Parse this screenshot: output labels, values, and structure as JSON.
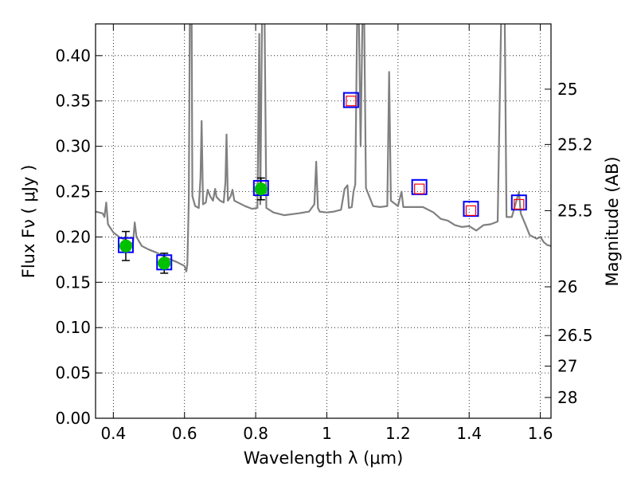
{
  "chart_data": {
    "type": "line",
    "title": "",
    "xlabel": "Wavelength  λ (μm)",
    "ylabel": "Flux  Fν  ( μJy )",
    "y2label": "Magnitude (AB)",
    "xlim": [
      0.35,
      1.63
    ],
    "ylim": [
      0.0,
      0.435
    ],
    "grid": true,
    "x_ticks": [
      {
        "value": 0.4,
        "label": "0.4"
      },
      {
        "value": 0.6,
        "label": "0.6"
      },
      {
        "value": 0.8,
        "label": "0.8"
      },
      {
        "value": 1.0,
        "label": "1"
      },
      {
        "value": 1.2,
        "label": "1.2"
      },
      {
        "value": 1.4,
        "label": "1.4"
      },
      {
        "value": 1.6,
        "label": "1.6"
      }
    ],
    "y_ticks": [
      {
        "value": 0.0,
        "label": "0.00"
      },
      {
        "value": 0.05,
        "label": "0.05"
      },
      {
        "value": 0.1,
        "label": "0.10"
      },
      {
        "value": 0.15,
        "label": "0.15"
      },
      {
        "value": 0.2,
        "label": "0.20"
      },
      {
        "value": 0.25,
        "label": "0.25"
      },
      {
        "value": 0.3,
        "label": "0.30"
      },
      {
        "value": 0.35,
        "label": "0.35"
      },
      {
        "value": 0.4,
        "label": "0.40"
      }
    ],
    "y2_ticks": [
      {
        "label": "25",
        "flux": 0.363
      },
      {
        "label": "25.2",
        "flux": 0.302
      },
      {
        "label": "25.5",
        "flux": 0.229
      },
      {
        "label": "26",
        "flux": 0.145
      },
      {
        "label": "26.5",
        "flux": 0.0912
      },
      {
        "label": "27",
        "flux": 0.0575
      },
      {
        "label": "28",
        "flux": 0.0229
      }
    ],
    "model_spectrum": {
      "color": "#808080",
      "points": [
        [
          0.35,
          0.228
        ],
        [
          0.36,
          0.227
        ],
        [
          0.37,
          0.226
        ],
        [
          0.375,
          0.222
        ],
        [
          0.38,
          0.238
        ],
        [
          0.385,
          0.214
        ],
        [
          0.4,
          0.205
        ],
        [
          0.42,
          0.199
        ],
        [
          0.44,
          0.196
        ],
        [
          0.455,
          0.192
        ],
        [
          0.46,
          0.216
        ],
        [
          0.465,
          0.2
        ],
        [
          0.48,
          0.19
        ],
        [
          0.5,
          0.186
        ],
        [
          0.52,
          0.183
        ],
        [
          0.55,
          0.177
        ],
        [
          0.58,
          0.172
        ],
        [
          0.6,
          0.168
        ],
        [
          0.605,
          0.162
        ],
        [
          0.608,
          0.17
        ],
        [
          0.612,
          0.24
        ],
        [
          0.615,
          0.44
        ],
        [
          0.62,
          0.44
        ],
        [
          0.622,
          0.245
        ],
        [
          0.63,
          0.234
        ],
        [
          0.64,
          0.232
        ],
        [
          0.645,
          0.265
        ],
        [
          0.648,
          0.328
        ],
        [
          0.652,
          0.236
        ],
        [
          0.66,
          0.238
        ],
        [
          0.665,
          0.252
        ],
        [
          0.672,
          0.245
        ],
        [
          0.68,
          0.24
        ],
        [
          0.686,
          0.253
        ],
        [
          0.69,
          0.244
        ],
        [
          0.7,
          0.24
        ],
        [
          0.71,
          0.238
        ],
        [
          0.715,
          0.26
        ],
        [
          0.718,
          0.313
        ],
        [
          0.722,
          0.24
        ],
        [
          0.73,
          0.245
        ],
        [
          0.735,
          0.252
        ],
        [
          0.74,
          0.24
        ],
        [
          0.75,
          0.238
        ],
        [
          0.77,
          0.234
        ],
        [
          0.79,
          0.231
        ],
        [
          0.805,
          0.232
        ],
        [
          0.81,
          0.424
        ],
        [
          0.813,
          0.236
        ],
        [
          0.818,
          0.44
        ],
        [
          0.822,
          0.44
        ],
        [
          0.825,
          0.44
        ],
        [
          0.83,
          0.232
        ],
        [
          0.85,
          0.227
        ],
        [
          0.88,
          0.224
        ],
        [
          0.92,
          0.226
        ],
        [
          0.95,
          0.228
        ],
        [
          0.965,
          0.236
        ],
        [
          0.97,
          0.283
        ],
        [
          0.975,
          0.232
        ],
        [
          0.98,
          0.228
        ],
        [
          1.0,
          0.227
        ],
        [
          1.02,
          0.228
        ],
        [
          1.04,
          0.23
        ],
        [
          1.05,
          0.253
        ],
        [
          1.058,
          0.257
        ],
        [
          1.062,
          0.232
        ],
        [
          1.07,
          0.233
        ],
        [
          1.075,
          0.25
        ],
        [
          1.08,
          0.258
        ],
        [
          1.085,
          0.44
        ],
        [
          1.09,
          0.44
        ],
        [
          1.095,
          0.3
        ],
        [
          1.1,
          0.44
        ],
        [
          1.105,
          0.44
        ],
        [
          1.11,
          0.254
        ],
        [
          1.13,
          0.234
        ],
        [
          1.15,
          0.233
        ],
        [
          1.17,
          0.234
        ],
        [
          1.175,
          0.382
        ],
        [
          1.18,
          0.24
        ],
        [
          1.2,
          0.234
        ],
        [
          1.21,
          0.25
        ],
        [
          1.215,
          0.233
        ],
        [
          1.24,
          0.233
        ],
        [
          1.27,
          0.233
        ],
        [
          1.3,
          0.227
        ],
        [
          1.32,
          0.22
        ],
        [
          1.34,
          0.218
        ],
        [
          1.36,
          0.213
        ],
        [
          1.38,
          0.211
        ],
        [
          1.4,
          0.212
        ],
        [
          1.42,
          0.207
        ],
        [
          1.44,
          0.213
        ],
        [
          1.46,
          0.214
        ],
        [
          1.48,
          0.217
        ],
        [
          1.49,
          0.44
        ],
        [
          1.5,
          0.44
        ],
        [
          1.505,
          0.222
        ],
        [
          1.52,
          0.222
        ],
        [
          1.54,
          0.25
        ],
        [
          1.545,
          0.226
        ],
        [
          1.56,
          0.212
        ],
        [
          1.57,
          0.202
        ],
        [
          1.58,
          0.2
        ],
        [
          1.59,
          0.198
        ],
        [
          1.6,
          0.2
        ],
        [
          1.61,
          0.194
        ],
        [
          1.62,
          0.191
        ],
        [
          1.63,
          0.19
        ]
      ]
    },
    "model_photometry": {
      "color": "#0000ff",
      "points": [
        [
          0.435,
          0.191
        ],
        [
          0.543,
          0.172
        ],
        [
          0.815,
          0.254
        ],
        [
          1.068,
          0.351
        ],
        [
          1.26,
          0.255
        ],
        [
          1.405,
          0.231
        ],
        [
          1.54,
          0.238
        ]
      ]
    },
    "upper_limits": {
      "color": "#ff0000",
      "points": [
        [
          1.068,
          0.35
        ],
        [
          1.26,
          0.253
        ],
        [
          1.405,
          0.229
        ],
        [
          1.54,
          0.236
        ]
      ]
    },
    "observed": {
      "color": "#00c000",
      "points": [
        {
          "x": 0.435,
          "y": 0.19,
          "err": 0.016
        },
        {
          "x": 0.543,
          "y": 0.171,
          "err": 0.011
        },
        {
          "x": 0.815,
          "y": 0.253,
          "err": 0.012
        }
      ]
    }
  }
}
